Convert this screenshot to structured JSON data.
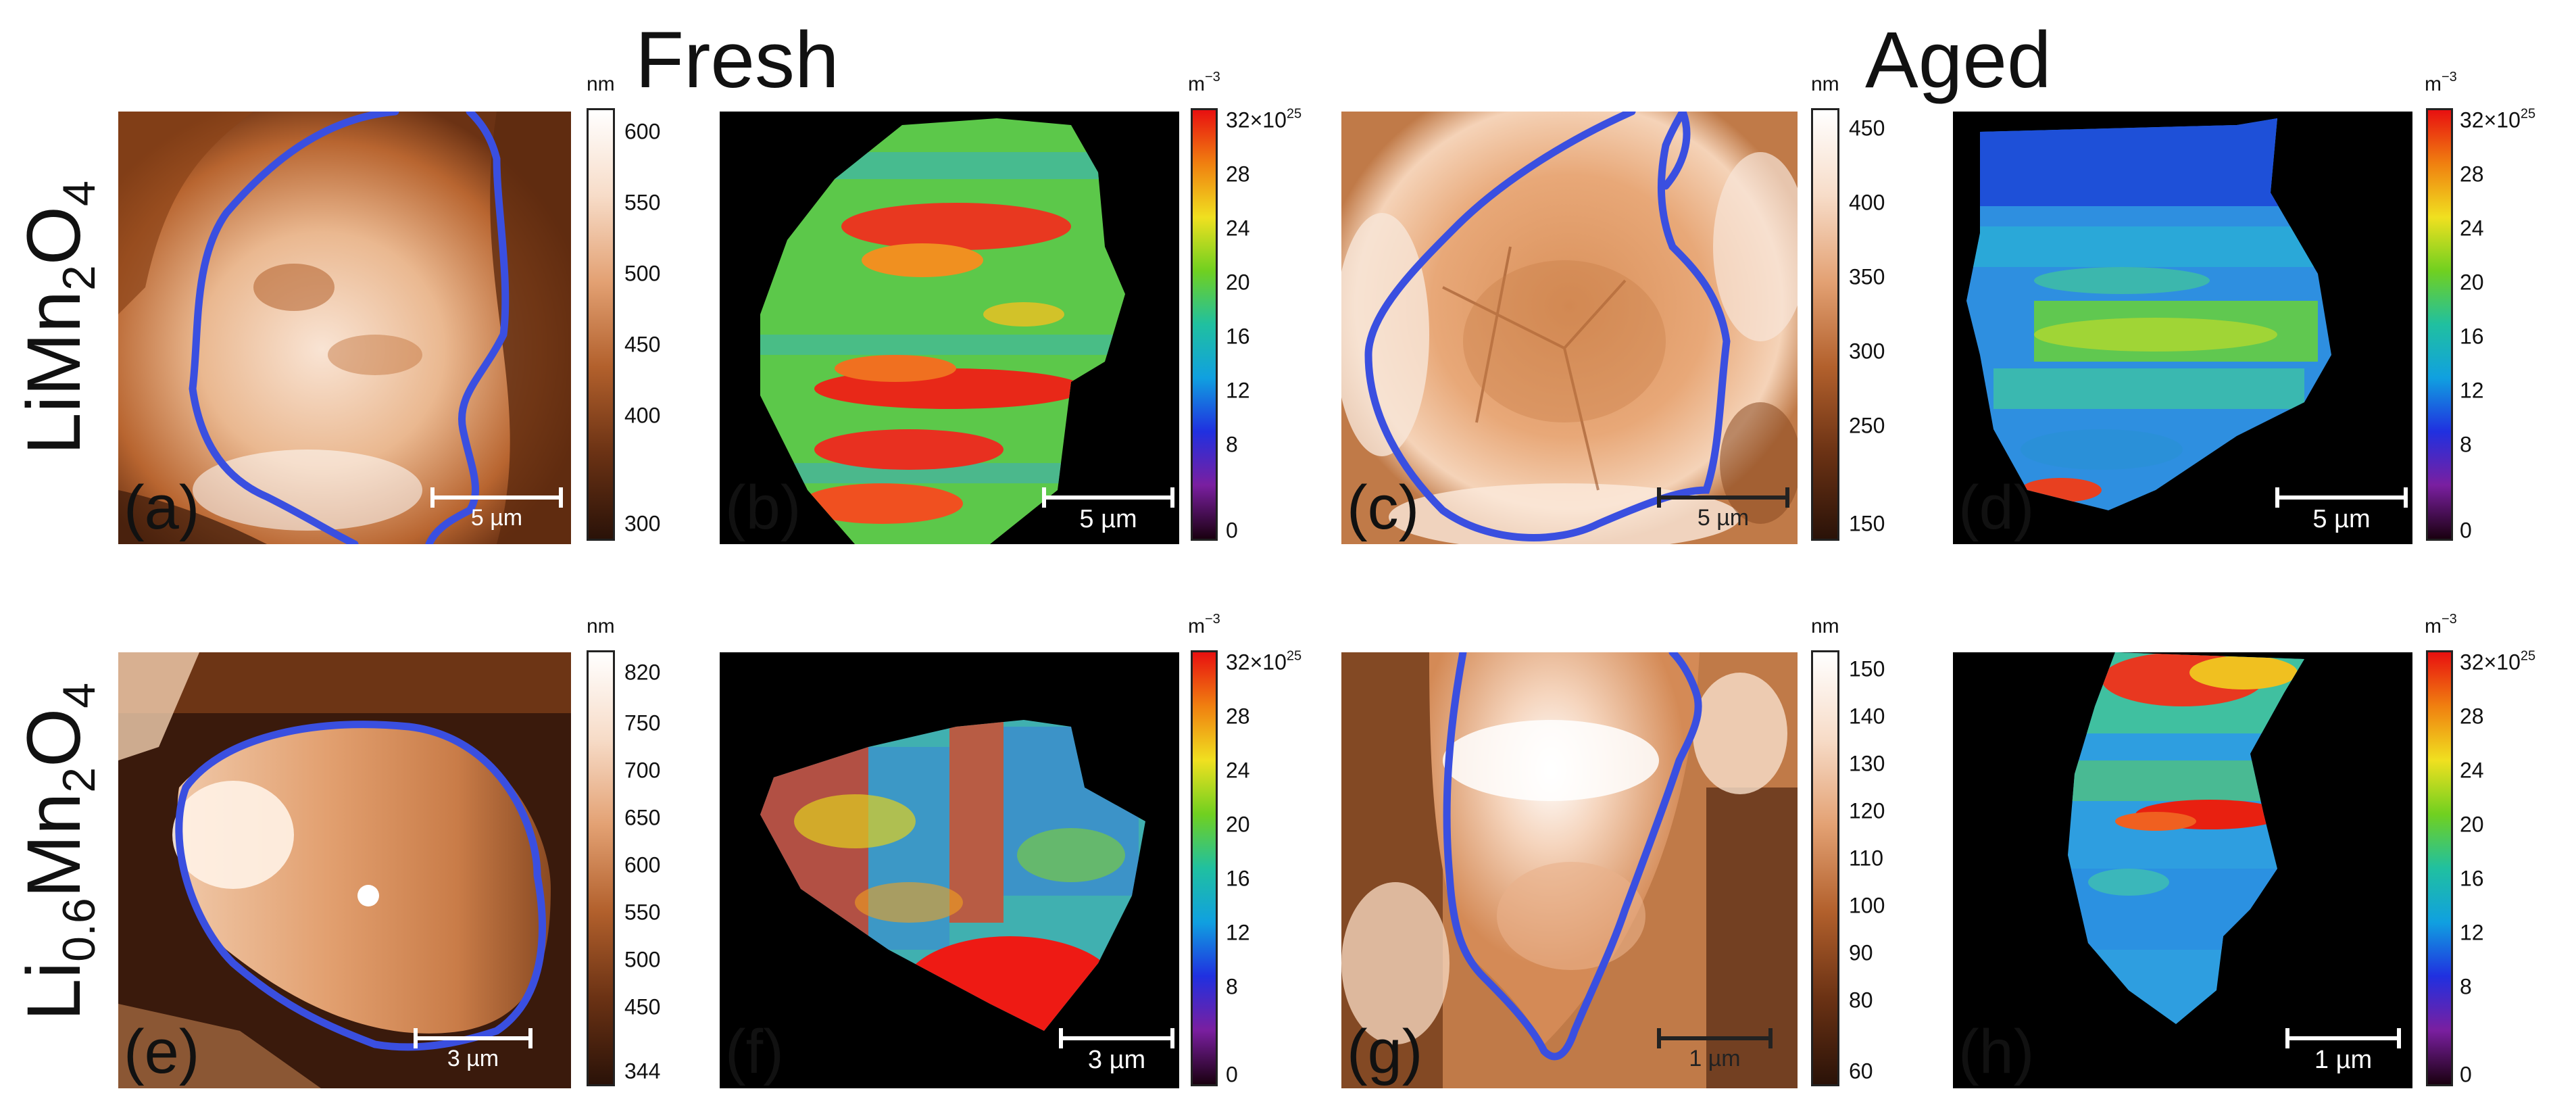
{
  "columns": {
    "fresh": "Fresh",
    "aged": "Aged"
  },
  "rows": {
    "top": {
      "base": "LiMn",
      "sub1": "2",
      "mid": "O",
      "sub2": "4"
    },
    "bottom": {
      "base": "Li",
      "sub0": "0.6",
      "mid1": "Mn",
      "sub1": "2",
      "mid2": "O",
      "sub2": "4"
    }
  },
  "panels": {
    "a": {
      "label": "(a)",
      "type": "topography",
      "scale": "5 µm",
      "colorbar": {
        "unit": "nm",
        "ticks": [
          "600",
          "550",
          "500",
          "450",
          "400",
          "300"
        ]
      }
    },
    "b": {
      "label": "(b)",
      "type": "density",
      "scale": "5 µm",
      "colorbar": {
        "unit": "m",
        "unit_exp": "−3",
        "top_base": "32×10",
        "top_exp": "25",
        "ticks": [
          "28",
          "24",
          "20",
          "16",
          "12",
          "8",
          "0"
        ]
      }
    },
    "c": {
      "label": "(c)",
      "type": "topography",
      "scale": "5 µm",
      "colorbar": {
        "unit": "nm",
        "ticks": [
          "450",
          "400",
          "350",
          "300",
          "250",
          "150"
        ]
      }
    },
    "d": {
      "label": "(d)",
      "type": "density",
      "scale": "5 µm",
      "colorbar": {
        "unit": "m",
        "unit_exp": "−3",
        "top_base": "32×10",
        "top_exp": "25",
        "ticks": [
          "28",
          "24",
          "20",
          "16",
          "12",
          "8",
          "0"
        ]
      }
    },
    "e": {
      "label": "(e)",
      "type": "topography",
      "scale": "3 µm",
      "colorbar": {
        "unit": "nm",
        "ticks": [
          "820",
          "750",
          "700",
          "650",
          "600",
          "550",
          "500",
          "450",
          "344"
        ]
      }
    },
    "f": {
      "label": "(f)",
      "type": "density",
      "scale": "3 µm",
      "colorbar": {
        "unit": "m",
        "unit_exp": "−3",
        "top_base": "32×10",
        "top_exp": "25",
        "ticks": [
          "28",
          "24",
          "20",
          "16",
          "12",
          "8",
          "0"
        ]
      }
    },
    "g": {
      "label": "(g)",
      "type": "topography",
      "scale": "1 µm",
      "colorbar": {
        "unit": "nm",
        "ticks": [
          "150",
          "140",
          "130",
          "120",
          "110",
          "100",
          "90",
          "80",
          "60"
        ]
      }
    },
    "h": {
      "label": "(h)",
      "type": "density",
      "scale": "1 µm",
      "colorbar": {
        "unit": "m",
        "unit_exp": "−3",
        "top_base": "32×10",
        "top_exp": "25",
        "ticks": [
          "28",
          "24",
          "20",
          "16",
          "12",
          "8",
          "0"
        ]
      }
    }
  },
  "colors": {
    "outline": "#3a4fe0",
    "copper": [
      "#2a1208",
      "#6b3214",
      "#b2602c",
      "#e3a173",
      "#f7dcc8",
      "#ffffff"
    ],
    "jet": [
      "#1a0010",
      "#7a1fa0",
      "#2030e0",
      "#10a0e0",
      "#20c0a0",
      "#70d020",
      "#f0e020",
      "#f08010",
      "#e81010"
    ]
  }
}
